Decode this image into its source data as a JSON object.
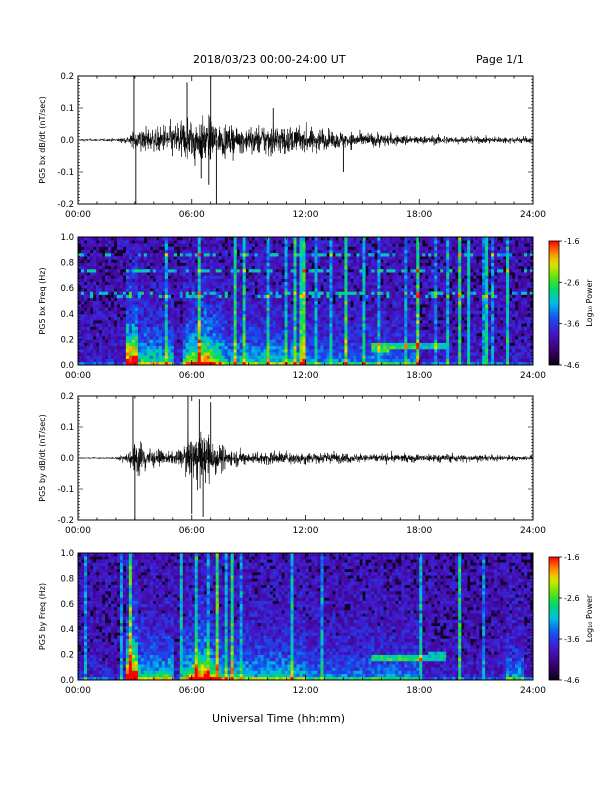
{
  "header": {
    "title": "2018/03/23  00:00-24:00 UT",
    "page": "Page 1/1"
  },
  "xlabel": "Universal Time (hh:mm)",
  "chart_data": [
    {
      "type": "line",
      "ylabel": "PG5 bx dB/dt (nT/sec)",
      "xlim": [
        0,
        24
      ],
      "ylim": [
        -0.2,
        0.2
      ],
      "xticks": [
        "00:00",
        "06:00",
        "12:00",
        "18:00",
        "24:00"
      ],
      "yticks": [
        -0.2,
        -0.1,
        0.0,
        0.1,
        0.2
      ],
      "envelope": {
        "x": [
          0,
          1,
          2,
          2.5,
          2.8,
          3.0,
          3.2,
          3.5,
          4.0,
          4.5,
          5.0,
          5.5,
          6.0,
          6.5,
          7.0,
          7.5,
          8.0,
          9.0,
          10.0,
          11.0,
          12.0,
          13.0,
          14.0,
          15.0,
          16.0,
          17.0,
          18.0,
          19.0,
          20.0,
          21.0,
          22.0,
          23.0,
          24.0
        ],
        "amp": [
          0.005,
          0.006,
          0.008,
          0.015,
          0.03,
          0.05,
          0.07,
          0.06,
          0.05,
          0.07,
          0.08,
          0.1,
          0.12,
          0.1,
          0.1,
          0.08,
          0.07,
          0.06,
          0.08,
          0.07,
          0.06,
          0.05,
          0.04,
          0.035,
          0.03,
          0.025,
          0.02,
          0.02,
          0.018,
          0.015,
          0.015,
          0.015,
          0.015
        ]
      },
      "spikes": [
        {
          "x": 2.95,
          "y": 0.2
        },
        {
          "x": 3.05,
          "y": -0.2
        },
        {
          "x": 5.75,
          "y": 0.18
        },
        {
          "x": 6.5,
          "y": -0.12
        },
        {
          "x": 6.9,
          "y": -0.14
        },
        {
          "x": 7.0,
          "y": 0.2
        },
        {
          "x": 7.3,
          "y": -0.2
        },
        {
          "x": 10.3,
          "y": 0.1
        },
        {
          "x": 14.0,
          "y": -0.1
        }
      ]
    },
    {
      "type": "heatmap",
      "ylabel": "PG5 bx Freq (Hz)",
      "xlim": [
        0,
        24
      ],
      "ylim": [
        0,
        1.0
      ],
      "xticks": [
        "00:00",
        "06:00",
        "12:00",
        "18:00",
        "24:00"
      ],
      "yticks": [
        0.0,
        0.2,
        0.4,
        0.6,
        0.8,
        1.0
      ],
      "colorbar": {
        "label": "Log₁₀ Power",
        "min": -4.6,
        "max": -1.6,
        "ticks": [
          -1.6,
          -2.6,
          -3.6,
          -4.6
        ]
      }
    },
    {
      "type": "line",
      "ylabel": "PG5 by dB/dt (nT/sec)",
      "xlim": [
        0,
        24
      ],
      "ylim": [
        -0.2,
        0.2
      ],
      "xticks": [
        "00:00",
        "06:00",
        "12:00",
        "18:00",
        "24:00"
      ],
      "yticks": [
        -0.2,
        -0.1,
        0.0,
        0.1,
        0.2
      ],
      "envelope": {
        "x": [
          0,
          1,
          2,
          2.5,
          2.8,
          3.0,
          3.2,
          3.5,
          4.0,
          4.5,
          5.0,
          5.5,
          6.0,
          6.5,
          7.0,
          7.5,
          8.0,
          9.0,
          10.0,
          11.0,
          12.0,
          13.0,
          14.0,
          15.0,
          16.0,
          17.0,
          18.0,
          19.0,
          20.0,
          21.0,
          22.0,
          23.0,
          24.0
        ],
        "amp": [
          0.003,
          0.004,
          0.006,
          0.02,
          0.05,
          0.08,
          0.09,
          0.07,
          0.04,
          0.03,
          0.03,
          0.05,
          0.12,
          0.14,
          0.12,
          0.06,
          0.04,
          0.03,
          0.03,
          0.03,
          0.03,
          0.03,
          0.025,
          0.02,
          0.02,
          0.02,
          0.02,
          0.02,
          0.02,
          0.015,
          0.015,
          0.012,
          0.012
        ]
      },
      "spikes": [
        {
          "x": 2.9,
          "y": 0.2
        },
        {
          "x": 3.0,
          "y": -0.2
        },
        {
          "x": 5.8,
          "y": 0.2
        },
        {
          "x": 6.0,
          "y": -0.18
        },
        {
          "x": 6.4,
          "y": 0.19
        },
        {
          "x": 6.6,
          "y": -0.19
        },
        {
          "x": 7.0,
          "y": 0.18
        }
      ]
    },
    {
      "type": "heatmap",
      "ylabel": "PG5 by Freq (Hz)",
      "xlim": [
        0,
        24
      ],
      "ylim": [
        0,
        1.0
      ],
      "xticks": [
        "00:00",
        "06:00",
        "12:00",
        "18:00",
        "24:00"
      ],
      "yticks": [
        0.0,
        0.2,
        0.4,
        0.6,
        0.8,
        1.0
      ],
      "colorbar": {
        "label": "Log₁₀ Power",
        "min": -4.6,
        "max": -1.6,
        "ticks": [
          -1.6,
          -2.6,
          -3.6,
          -4.6
        ]
      }
    }
  ]
}
